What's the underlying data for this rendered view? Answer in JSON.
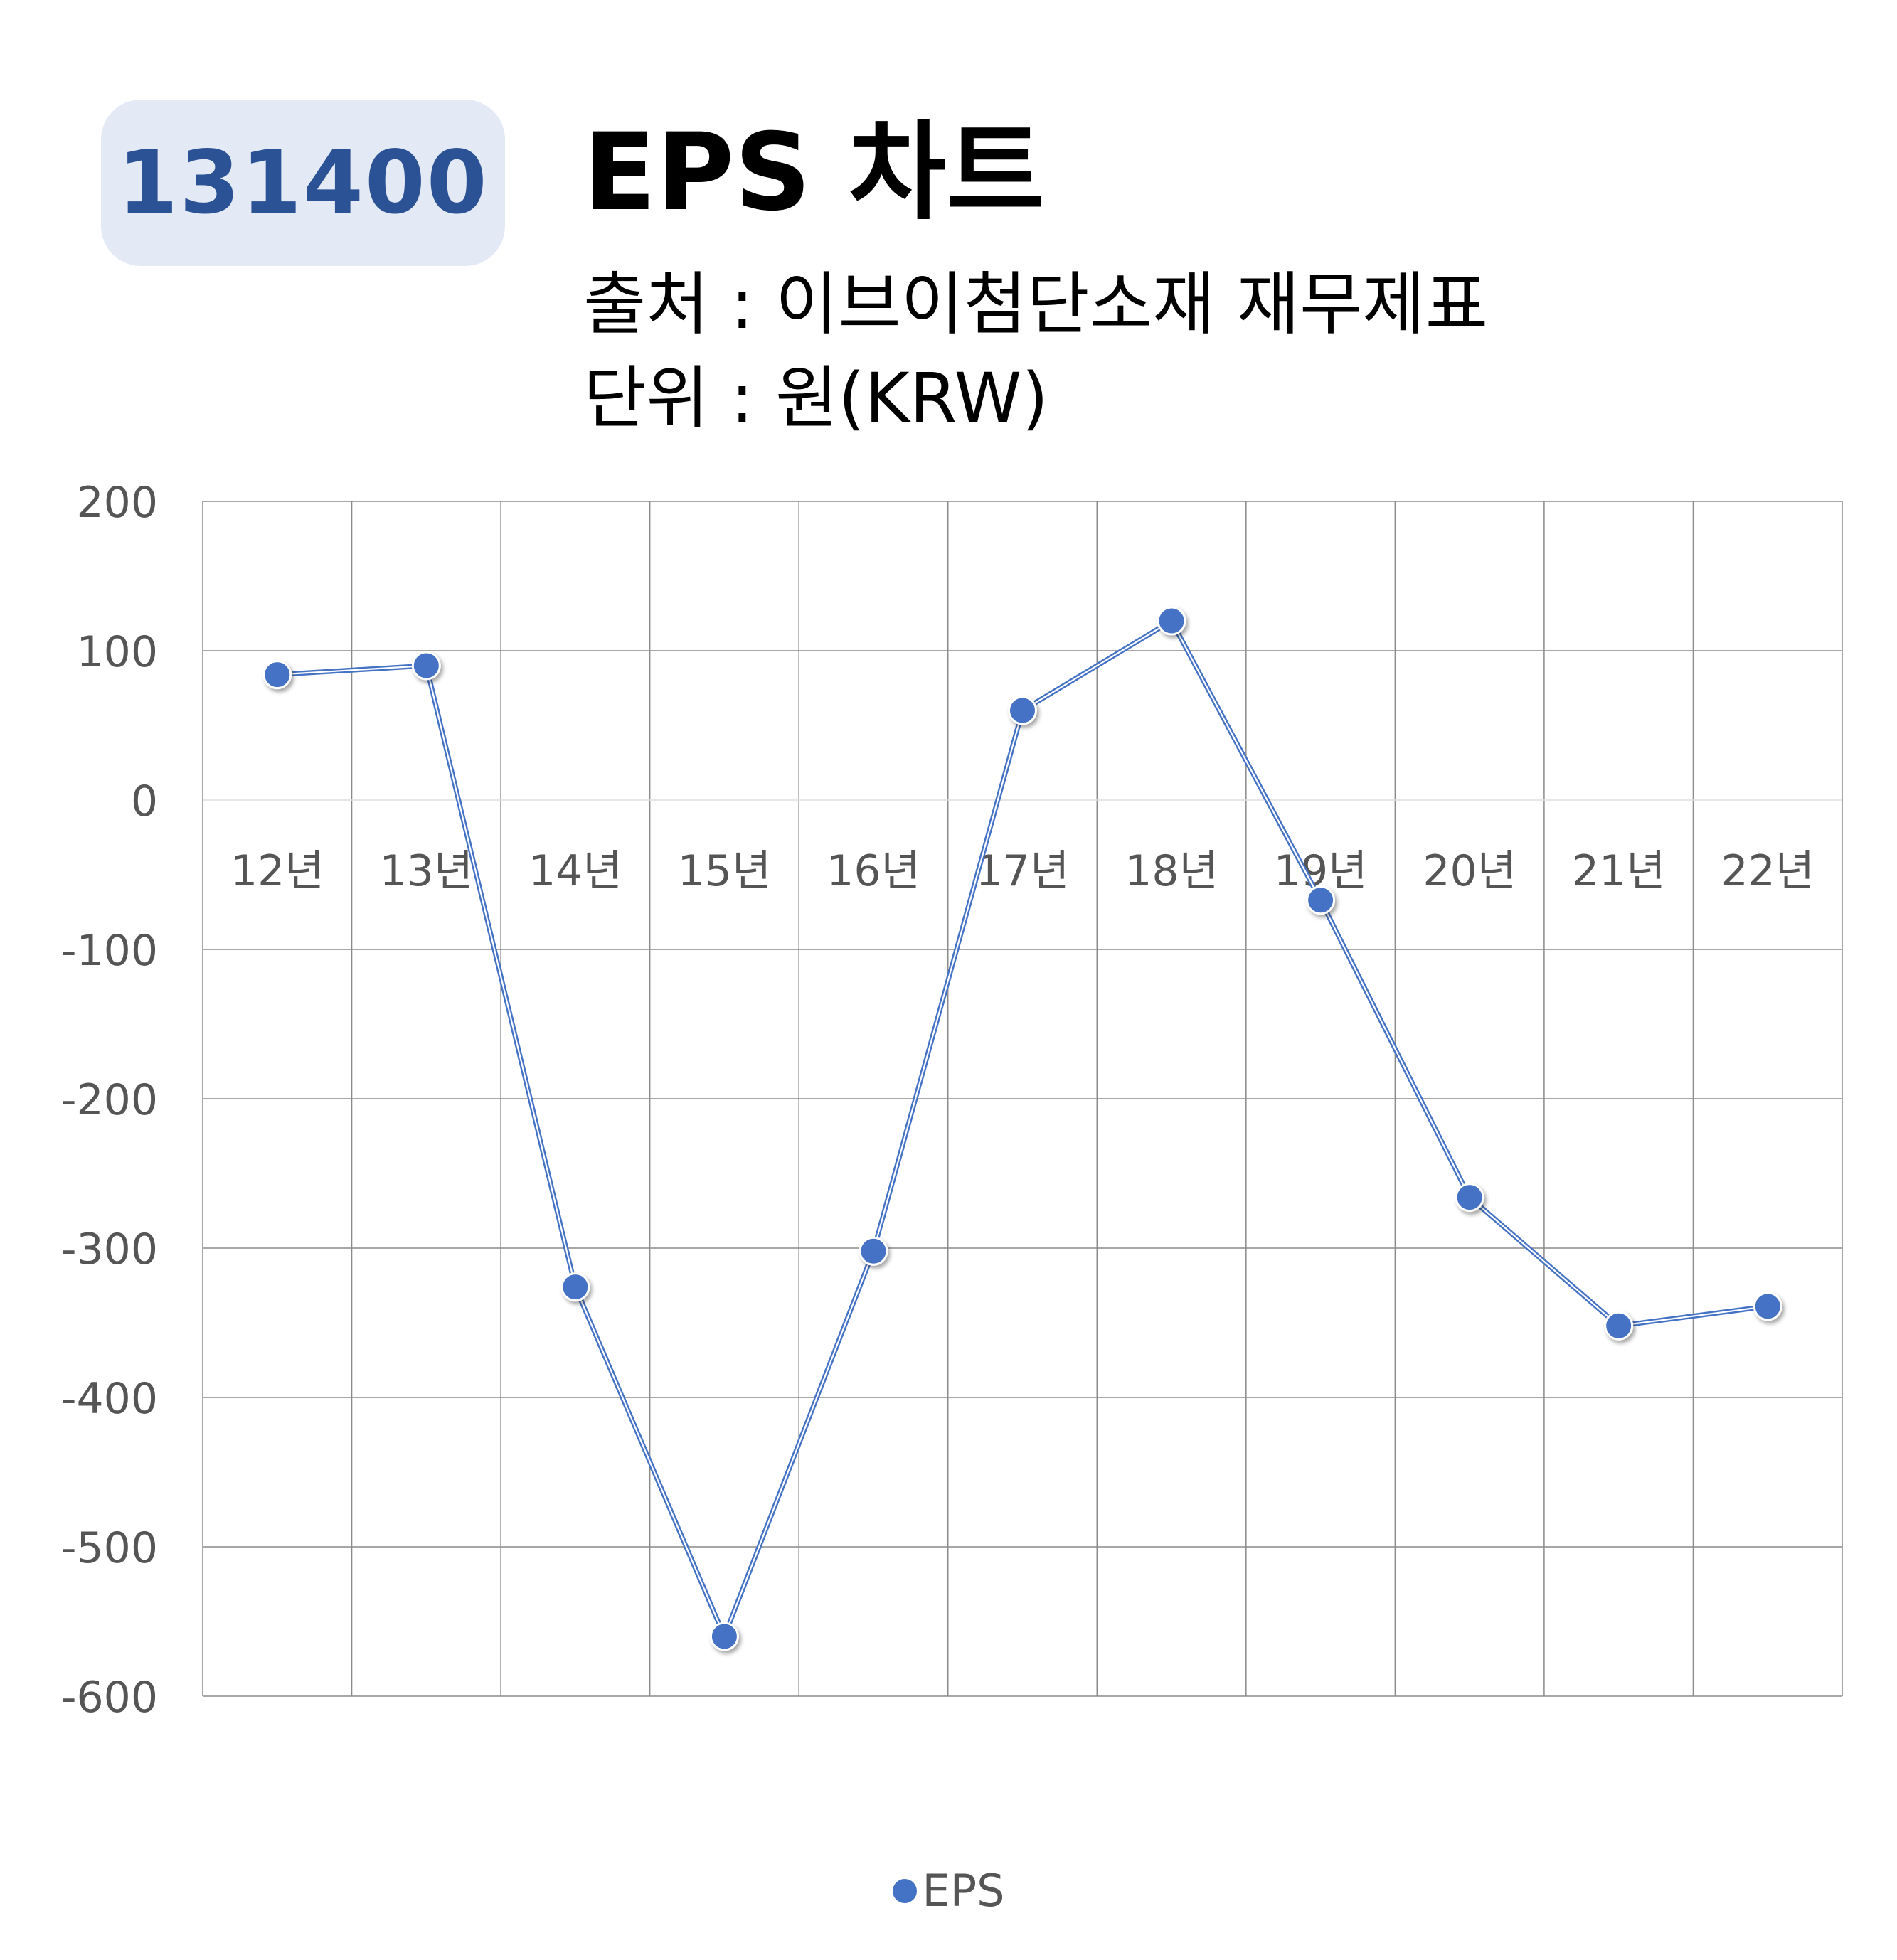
{
  "badge": {
    "code": "131400"
  },
  "header": {
    "title": "EPS 차트",
    "source": "출처 : 이브이첨단소재 재무제표",
    "unit": "단위 : 원(KRW)"
  },
  "colors": {
    "series": "#4472c4",
    "badge_bg": "#e3e9f5",
    "badge_text": "#2b5294",
    "grid": "#888888"
  },
  "chart_data": {
    "type": "line",
    "categories": [
      "12년",
      "13년",
      "14년",
      "15년",
      "16년",
      "17년",
      "18년",
      "19년",
      "20년",
      "21년",
      "22년"
    ],
    "series": [
      {
        "name": "EPS",
        "values": [
          84,
          90,
          -326,
          -560,
          -302,
          60,
          120,
          -67,
          -266,
          -352,
          -339
        ]
      }
    ],
    "ylim": [
      -600,
      200
    ],
    "yticks": [
      200,
      100,
      0,
      -100,
      -200,
      -300,
      -400,
      -500,
      -600
    ],
    "grid": true,
    "legend": "bottom"
  }
}
